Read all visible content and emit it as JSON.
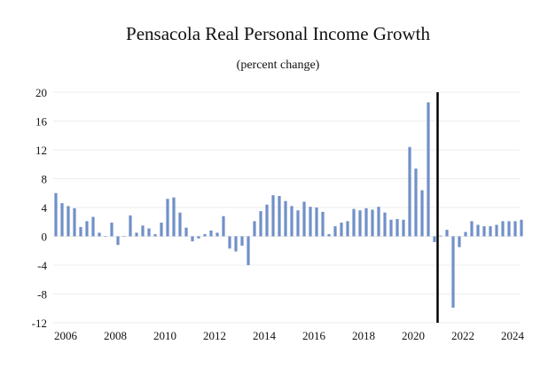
{
  "chart_data": {
    "type": "bar",
    "title": "Pensacola Real Personal Income Growth",
    "subtitle": "(percent change)",
    "xlabel": "",
    "ylabel": "",
    "ylim": [
      -12,
      20
    ],
    "yticks": [
      20,
      16,
      12,
      8,
      4,
      0,
      -4,
      -8,
      -12
    ],
    "xtick_labels": [
      "2006",
      "2008",
      "2010",
      "2012",
      "2014",
      "2016",
      "2018",
      "2020",
      "2022",
      "2024"
    ],
    "x_start": "2006Q1",
    "frequency": "quarterly",
    "forecast_line_after": "2021Q2",
    "grid": "horizontal",
    "bar_color": "#7090c8",
    "values": [
      6.0,
      4.6,
      4.2,
      3.9,
      1.3,
      2.1,
      2.7,
      0.5,
      0.0,
      1.9,
      -1.2,
      0.0,
      2.9,
      0.5,
      1.5,
      1.1,
      0.3,
      1.9,
      5.2,
      5.4,
      3.3,
      1.2,
      -0.7,
      -0.3,
      0.3,
      0.8,
      0.5,
      2.8,
      -1.7,
      -2.1,
      -1.3,
      -4.0,
      2.1,
      3.5,
      4.4,
      5.7,
      5.6,
      4.9,
      4.2,
      3.6,
      4.8,
      4.1,
      4.0,
      3.4,
      0.3,
      1.4,
      1.9,
      2.1,
      3.8,
      3.6,
      3.9,
      3.7,
      4.1,
      3.3,
      2.3,
      2.4,
      2.3,
      12.4,
      9.4,
      6.4,
      18.6,
      -0.8,
      0.1,
      0.9,
      -9.9,
      -1.5,
      0.6,
      2.1,
      1.6,
      1.4,
      1.4,
      1.6,
      2.1,
      2.1,
      2.1,
      2.3
    ]
  }
}
